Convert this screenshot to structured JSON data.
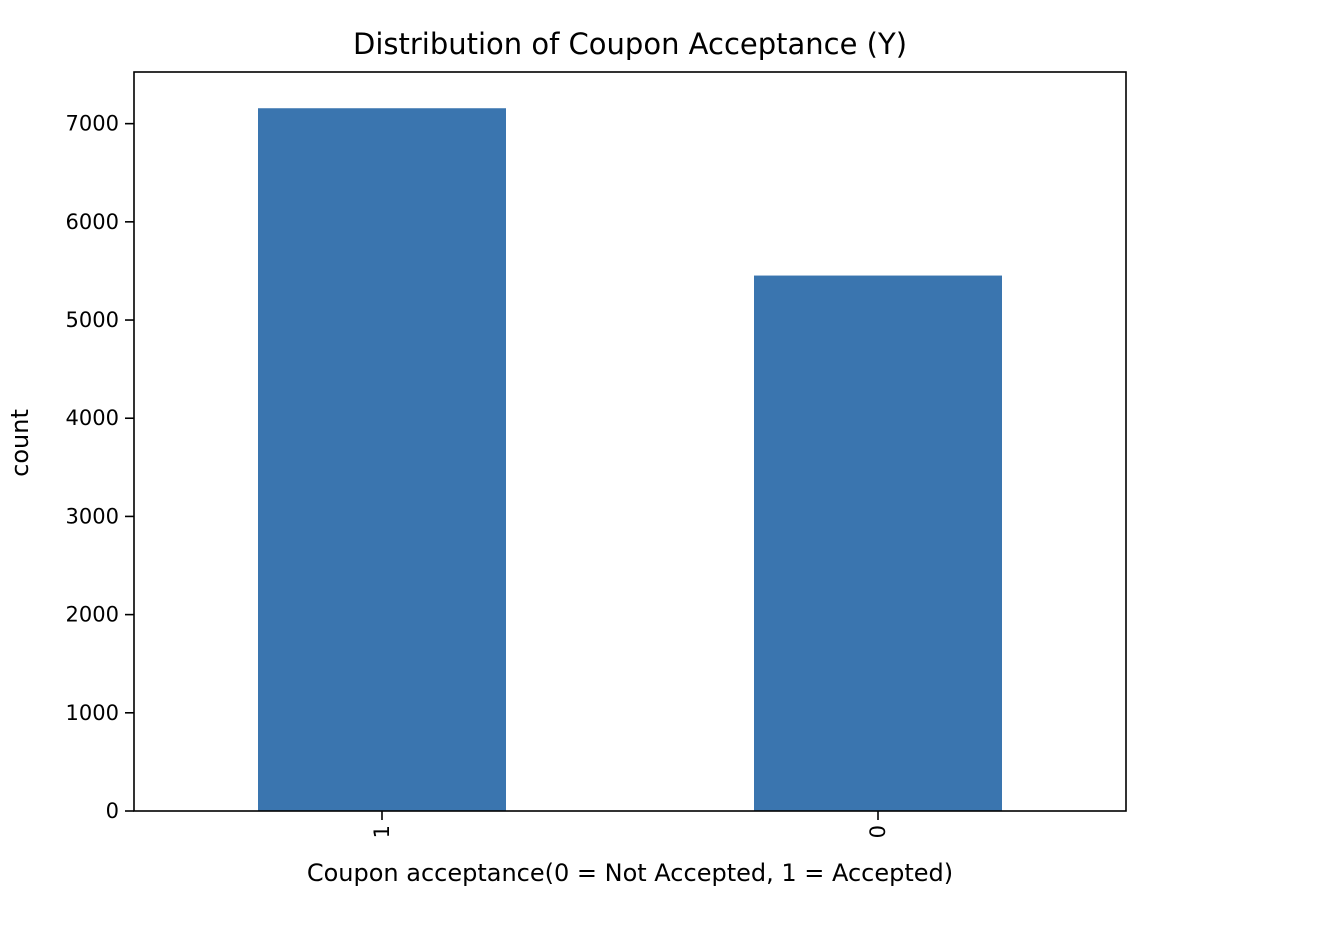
{
  "chart_data": {
    "type": "bar",
    "title": "Distribution of Coupon Acceptance (Y)",
    "xlabel": "Coupon acceptance(0 = Not Accepted, 1 = Accepted)",
    "ylabel": "count",
    "categories": [
      "1",
      "0"
    ],
    "values": [
      7157,
      5453
    ],
    "ylim": [
      0,
      7526
    ],
    "yticks": [
      0,
      1000,
      2000,
      3000,
      4000,
      5000,
      6000,
      7000
    ],
    "ytick_labels": [
      "0",
      "1000",
      "2000",
      "3000",
      "4000",
      "5000",
      "6000",
      "7000"
    ],
    "xtick_rotation": "vertical",
    "grid": false,
    "legend": "none",
    "bar_color": "#3a75af"
  }
}
